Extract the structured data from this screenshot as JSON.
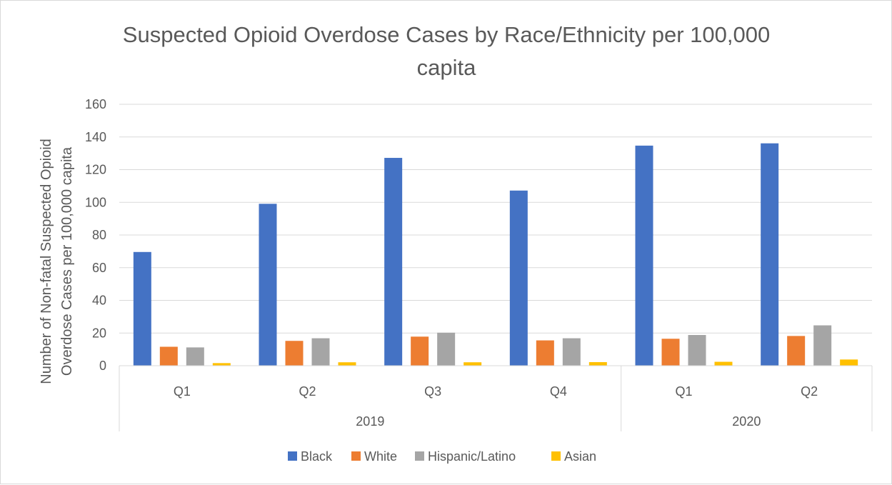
{
  "chart_data": {
    "type": "bar",
    "title_lines": [
      "Suspected Opioid Overdose Cases by Race/Ethnicity per 100,000",
      "capita"
    ],
    "ylabel_lines": [
      "Number of Non-fatal Suspected Opioid",
      "Overdose Cases per 100,000 capita"
    ],
    "xlabel": "",
    "ylim": [
      0,
      160
    ],
    "yticks": [
      0,
      20,
      40,
      60,
      80,
      100,
      120,
      140,
      160
    ],
    "grid": true,
    "legend_position": "bottom",
    "categories": [
      "Q1",
      "Q2",
      "Q3",
      "Q4",
      "Q1",
      "Q2"
    ],
    "groups": [
      {
        "label": "2019",
        "count": 4
      },
      {
        "label": "2020",
        "count": 2
      }
    ],
    "series": [
      {
        "name": "Black",
        "color": "#4472c4",
        "values": [
          69.6,
          99.1,
          127.2,
          107.2,
          134.7,
          136.1
        ]
      },
      {
        "name": "White",
        "color": "#ed7d31",
        "values": [
          11.6,
          15.2,
          17.8,
          15.5,
          16.5,
          18.2
        ]
      },
      {
        "name": "Hispanic/Latino",
        "color": "#a5a5a5",
        "values": [
          11.2,
          16.8,
          20.2,
          16.8,
          18.8,
          24.7
        ]
      },
      {
        "name": "Asian",
        "color": "#ffc000",
        "values": [
          1.6,
          2.1,
          2.1,
          2.2,
          2.4,
          3.8
        ]
      }
    ]
  }
}
